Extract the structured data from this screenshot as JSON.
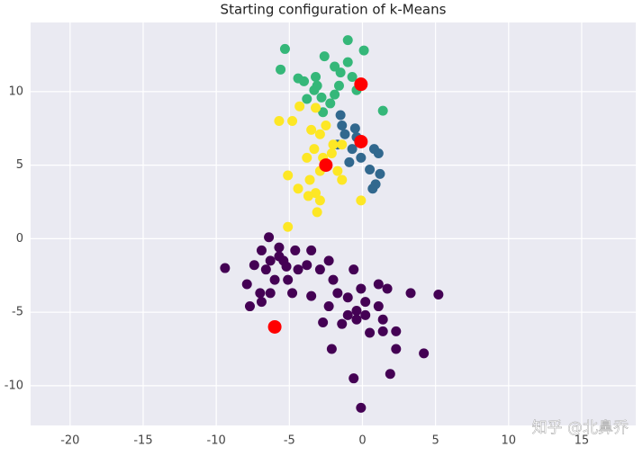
{
  "chart_data": {
    "type": "scatter",
    "title": "Starting configuration of k-Means",
    "watermark": "知乎 @北鼻乔",
    "xlim": [
      -22.7,
      18.7
    ],
    "ylim": [
      -12.7,
      14.7
    ],
    "xticks": [
      -20,
      -15,
      -10,
      -5,
      0,
      5,
      10,
      15
    ],
    "yticks": [
      -10,
      -5,
      0,
      5,
      10
    ],
    "grid": true,
    "series": [
      {
        "color": "#440154",
        "x": [
          -9.4,
          -6.4,
          -6.9,
          -5.7,
          -7.4,
          -6.3,
          -5.4,
          -4.6,
          -3.5,
          -3.8,
          -2.9,
          -4.4,
          -5.1,
          -6.0,
          -6.6,
          -7.9,
          -7.0,
          -6.3,
          -4.8,
          -3.5,
          -2.3,
          -2.0,
          -1.7,
          -1.0,
          -0.6,
          -0.1,
          0.2,
          -0.4,
          -1.0,
          -0.4,
          0.2,
          1.1,
          1.7,
          3.3,
          5.2,
          1.1,
          1.4,
          1.4,
          2.3,
          2.3,
          4.2,
          1.9,
          -0.6,
          -0.1,
          -2.1,
          -2.7,
          -2.3,
          -1.4,
          0.5,
          -7.7,
          -6.9,
          -5.7,
          -5.2
        ],
        "y": [
          -2.0,
          0.1,
          -0.8,
          -0.6,
          -1.8,
          -1.5,
          -1.5,
          -0.8,
          -0.8,
          -1.8,
          -2.1,
          -2.1,
          -2.8,
          -2.8,
          -2.1,
          -3.1,
          -3.7,
          -3.7,
          -3.7,
          -3.9,
          -1.5,
          -2.8,
          -3.7,
          -4.0,
          -2.1,
          -3.4,
          -4.3,
          -4.9,
          -5.2,
          -5.5,
          -5.2,
          -3.1,
          -3.4,
          -3.7,
          -3.8,
          -4.6,
          -5.5,
          -6.3,
          -6.3,
          -7.5,
          -7.8,
          -9.2,
          -9.5,
          -11.5,
          -7.5,
          -5.7,
          -4.6,
          -5.8,
          -6.4,
          -4.6,
          -4.3,
          -1.2,
          -1.9
        ]
      },
      {
        "color": "#31688e",
        "x": [
          -1.5,
          -1.4,
          -0.5,
          -1.7,
          -0.7,
          -0.1,
          0.8,
          1.1,
          0.5,
          1.2,
          0.7,
          0.9,
          -0.9,
          -0.4,
          -1.2
        ],
        "y": [
          8.4,
          7.7,
          7.5,
          6.4,
          6.1,
          5.5,
          6.1,
          5.8,
          4.7,
          4.4,
          3.4,
          3.7,
          5.2,
          6.9,
          7.1
        ]
      },
      {
        "color": "#35b779",
        "x": [
          -5.3,
          -1.0,
          0.1,
          -5.6,
          -4.4,
          -2.6,
          -1.9,
          -1.5,
          -1.0,
          -3.2,
          -3.3,
          -3.8,
          -2.8,
          -1.9,
          -1.6,
          -0.7,
          -0.4,
          1.4,
          -2.7,
          -2.2,
          -4.0,
          -3.1
        ],
        "y": [
          12.9,
          13.5,
          12.8,
          11.5,
          10.9,
          12.4,
          11.7,
          11.3,
          12.0,
          11.0,
          10.1,
          9.5,
          9.6,
          9.8,
          10.4,
          11.0,
          10.1,
          8.7,
          8.6,
          9.2,
          10.7,
          10.4
        ]
      },
      {
        "color": "#fde725",
        "x": [
          -5.7,
          -4.8,
          -4.3,
          -3.2,
          -3.5,
          -2.9,
          -2.5,
          -2.0,
          -1.4,
          -3.3,
          -2.7,
          -2.1,
          -3.8,
          -2.9,
          -1.7,
          -1.4,
          -5.1,
          -4.4,
          -3.6,
          -3.2,
          -2.9,
          -3.7,
          -3.1,
          -0.1,
          -5.1
        ],
        "y": [
          8.0,
          8.0,
          9.0,
          8.9,
          7.4,
          7.1,
          7.7,
          6.4,
          6.4,
          6.1,
          5.5,
          5.8,
          5.5,
          4.6,
          4.6,
          4.0,
          4.3,
          3.4,
          4.0,
          3.1,
          2.6,
          2.9,
          1.8,
          2.6,
          0.8
        ]
      },
      {
        "color": "#ff0000",
        "size": "large",
        "x": [
          -0.1,
          -0.1,
          -2.5,
          -6.0
        ],
        "y": [
          10.5,
          6.6,
          5.0,
          -6.0
        ]
      }
    ]
  }
}
